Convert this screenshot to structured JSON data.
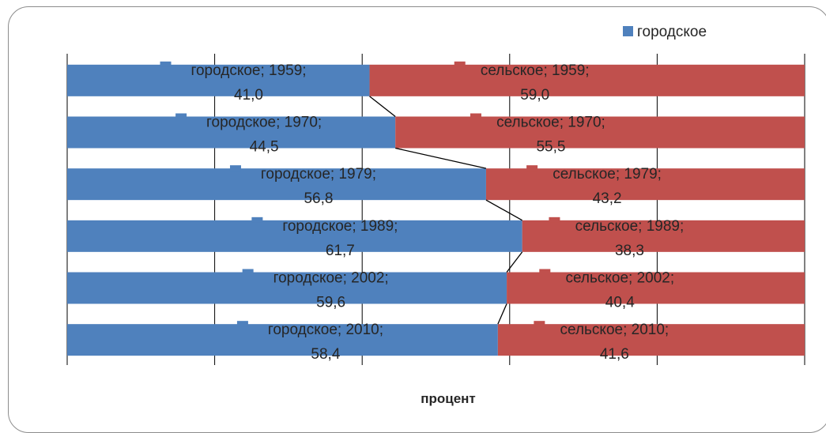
{
  "chart_data": {
    "type": "bar",
    "orientation": "horizontal",
    "stacked": "percent",
    "categories": [
      "1959",
      "1970",
      "1979",
      "1989",
      "2002",
      "2010"
    ],
    "series": [
      {
        "name": "городское",
        "values": [
          41.0,
          44.5,
          56.8,
          61.7,
          59.6,
          58.4
        ],
        "color": "#4f81bd"
      },
      {
        "name": "сельское",
        "values": [
          59.0,
          55.5,
          43.2,
          38.3,
          40.4,
          41.6
        ],
        "color": "#c0504d"
      }
    ],
    "data_labels": {
      "городское": [
        [
          "городское; 1959;",
          "41,0"
        ],
        [
          "городское; 1970;",
          "44,5"
        ],
        [
          "городское; 1979;",
          "56,8"
        ],
        [
          "городское; 1989;",
          "61,7"
        ],
        [
          "городское; 2002;",
          "59,6"
        ],
        [
          "городское; 2010;",
          "58,4"
        ]
      ],
      "сельское": [
        [
          "сельское; 1959;",
          "59,0"
        ],
        [
          "сельское; 1970;",
          "55,5"
        ],
        [
          "сельское; 1979;",
          "43,2"
        ],
        [
          "сельское; 1989;",
          "38,3"
        ],
        [
          "сельское; 2002;",
          "40,4"
        ],
        [
          "сельское; 2010;",
          "41,6"
        ]
      ]
    },
    "xlabel": "процент",
    "xlim": [
      0,
      100
    ],
    "grid": true,
    "series_lines": true,
    "legend": {
      "position": "top-right",
      "entries": [
        "городское"
      ]
    }
  }
}
